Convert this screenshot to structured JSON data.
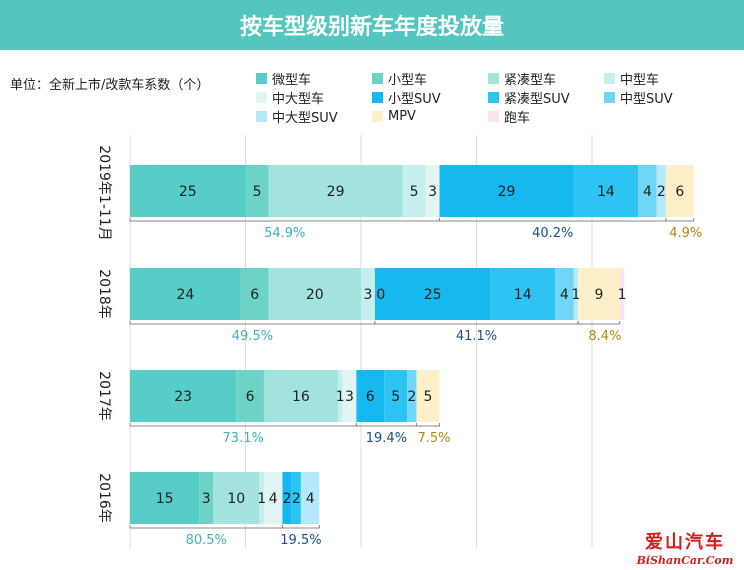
{
  "title": "按车型级别新车年度投放量",
  "unit_label": "单位：全新上市/改款车系数（个）",
  "watermark": {
    "cn": "爱山汽车",
    "en": "BiShanCar.Com"
  },
  "chart_data": {
    "type": "bar",
    "orientation": "horizontal",
    "stacked": true,
    "title": "按车型级别新车年度投放量",
    "categories": [
      "2019年1-11月",
      "2018年",
      "2017年",
      "2016年"
    ],
    "series": [
      {
        "name": "微型车",
        "color": "#56cdc6",
        "values": [
          25,
          24,
          23,
          15
        ]
      },
      {
        "name": "小型车",
        "color": "#6dd3c9",
        "values": [
          5,
          6,
          6,
          3
        ]
      },
      {
        "name": "紧凑型车",
        "color": "#a3e3de",
        "values": [
          29,
          20,
          16,
          10
        ]
      },
      {
        "name": "中型车",
        "color": "#c6eeee",
        "values": [
          5,
          3,
          1,
          1
        ]
      },
      {
        "name": "中大型车",
        "color": "#e1f5f5",
        "values": [
          3,
          0,
          3,
          4
        ]
      },
      {
        "name": "小型SUV",
        "color": "#16b8f0",
        "values": [
          29,
          25,
          6,
          2
        ]
      },
      {
        "name": "紧凑型SUV",
        "color": "#2dc4f4",
        "values": [
          14,
          14,
          5,
          2
        ]
      },
      {
        "name": "中型SUV",
        "color": "#6fd6f8",
        "values": [
          4,
          4,
          2,
          0
        ]
      },
      {
        "name": "中大型SUV",
        "color": "#b3e9f9",
        "values": [
          2,
          1,
          0,
          4
        ]
      },
      {
        "name": "MPV",
        "color": "#fdf0c8",
        "values": [
          6,
          9,
          5,
          0
        ]
      },
      {
        "name": "跑车",
        "color": "#fbe3f0",
        "values": [
          0,
          1,
          0,
          0
        ]
      }
    ],
    "group_percentages": [
      {
        "car": "54.9%",
        "suv": "40.2%",
        "mpv": "4.9%"
      },
      {
        "car": "49.5%",
        "suv": "41.1%",
        "mpv": "8.4%"
      },
      {
        "car": "73.1%",
        "suv": "19.4%",
        "mpv": "7.5%"
      },
      {
        "car": "80.5%",
        "suv": "19.5%",
        "mpv": ""
      }
    ],
    "xlim": [
      0,
      130
    ],
    "grid": true,
    "legend_position": "top-right"
  }
}
